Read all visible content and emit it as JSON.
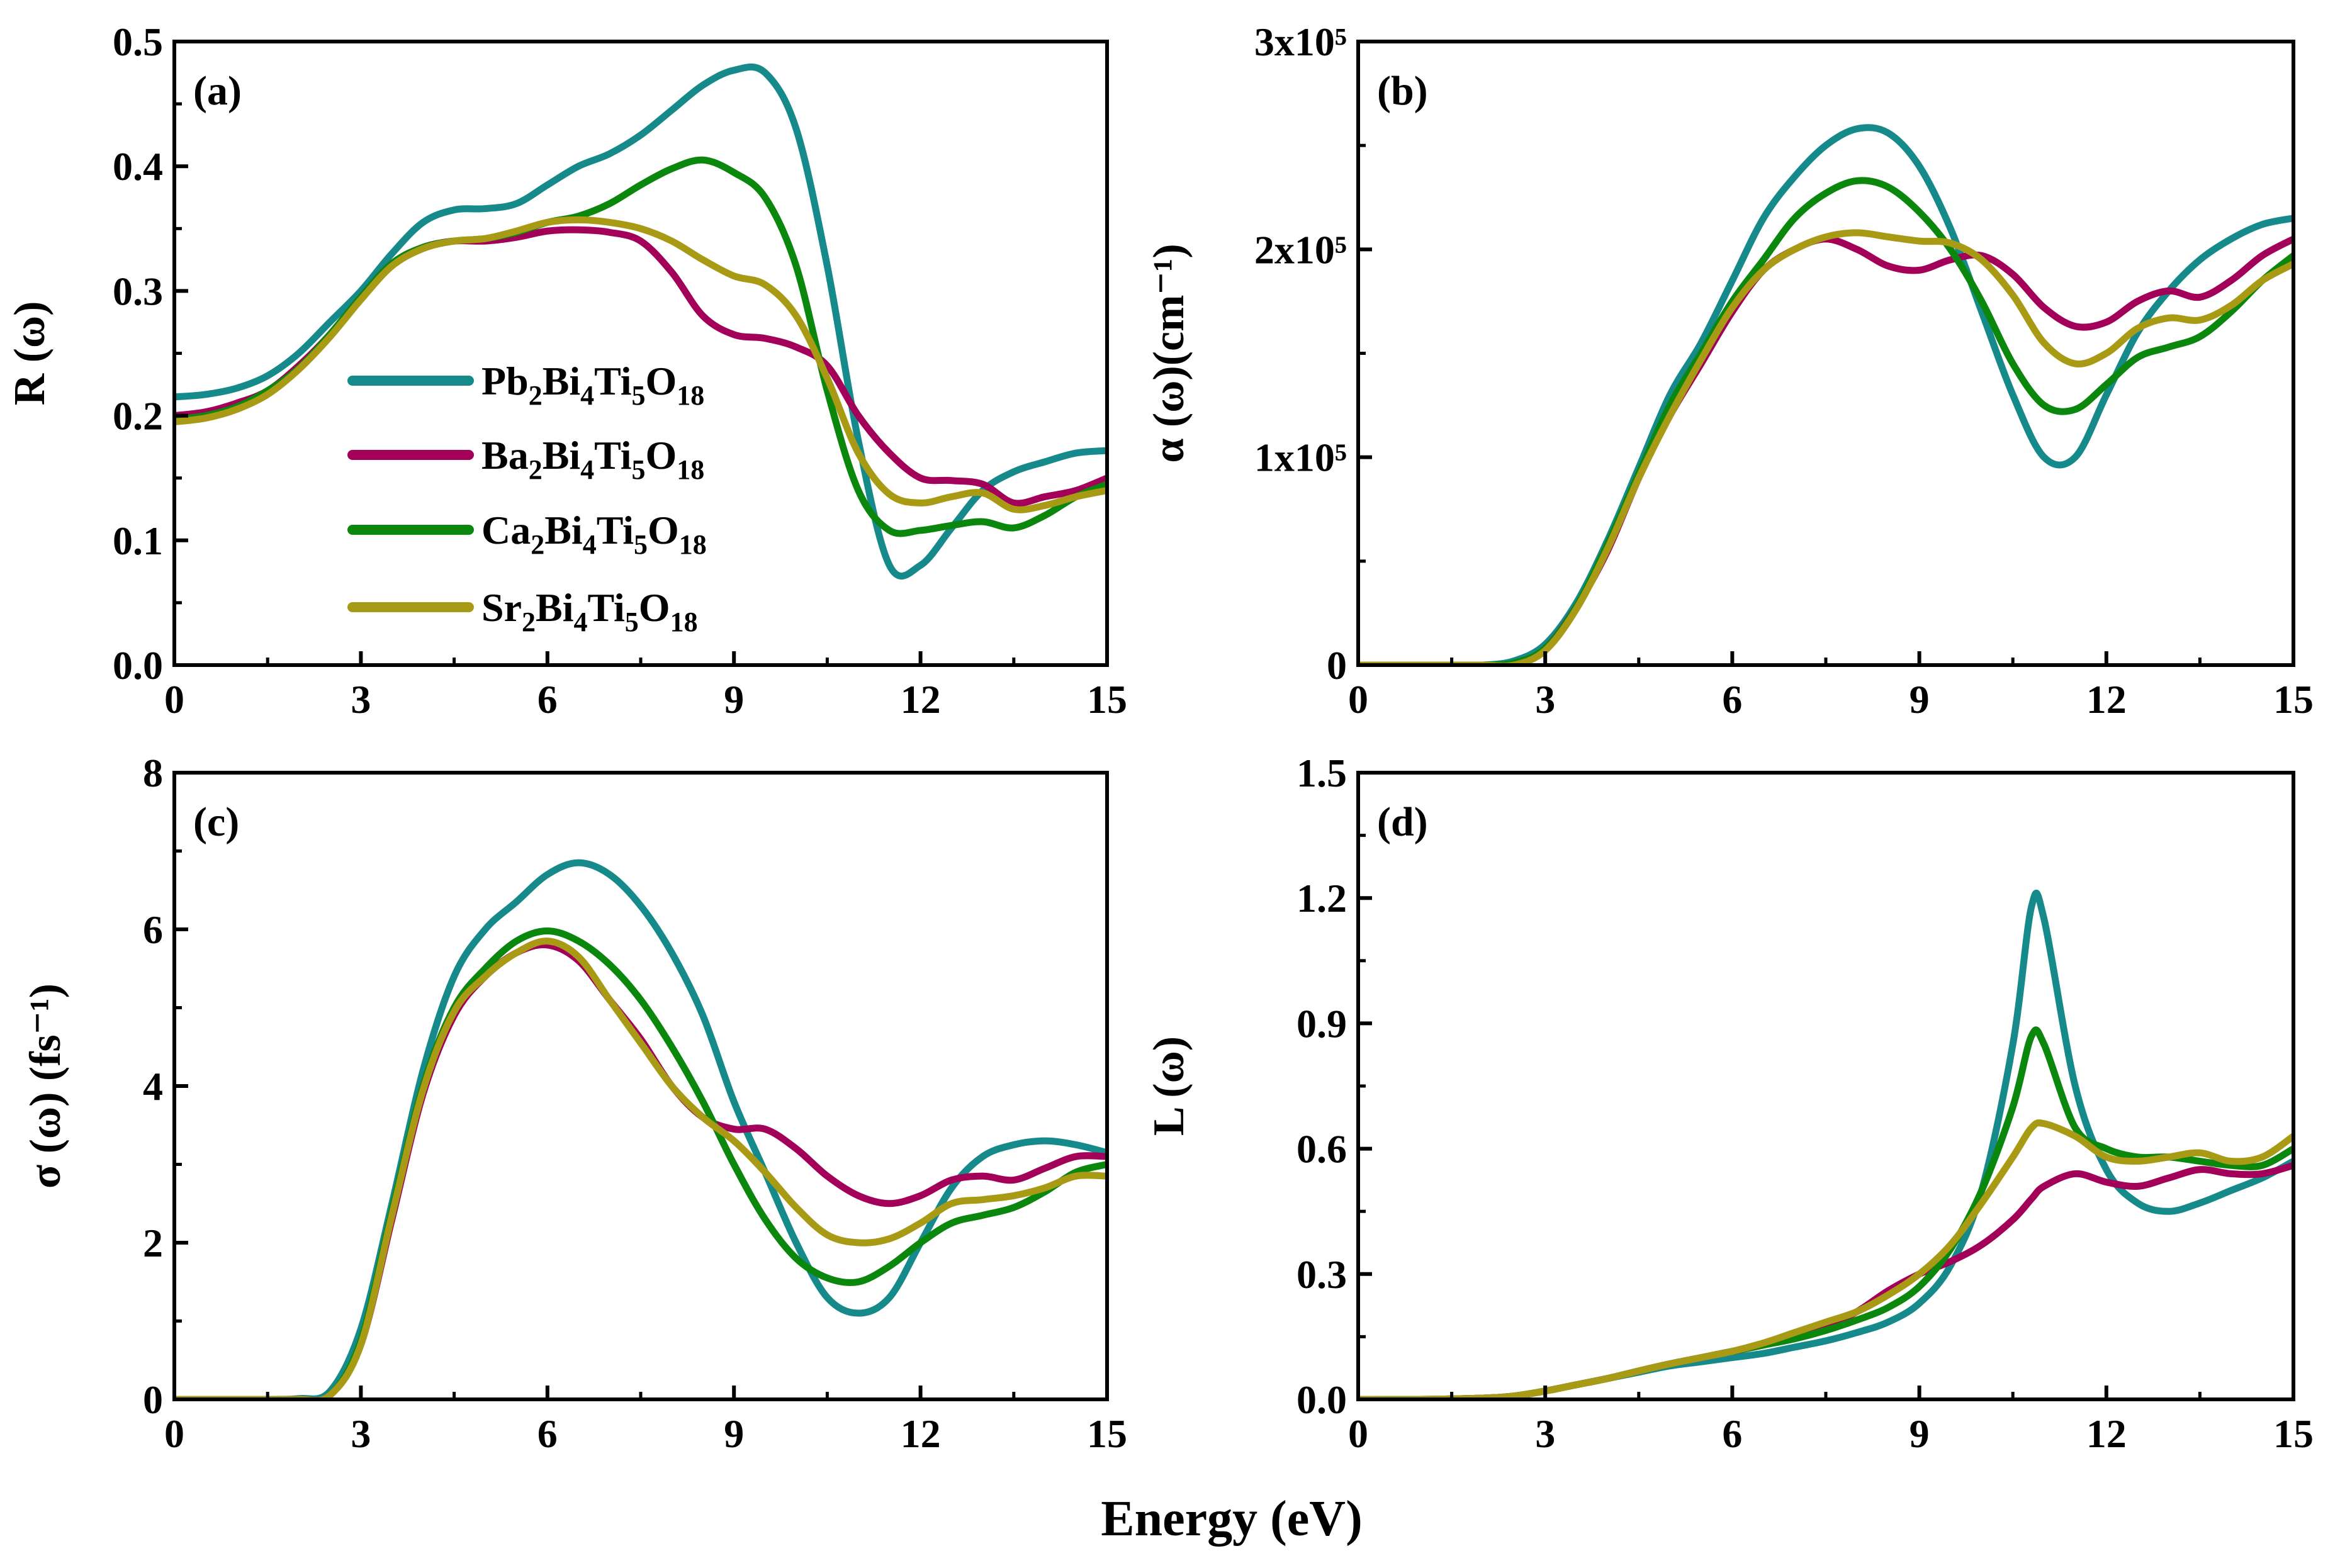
{
  "chart_data": [
    {
      "type": "line",
      "panel_label": "(a)",
      "ylabel": "R (ω)",
      "xlabel": "Energy (eV)",
      "xlim": [
        0,
        15
      ],
      "ylim": [
        0,
        0.5
      ],
      "xticks": [
        0,
        3,
        6,
        9,
        12,
        15
      ],
      "xtick_labels": [
        "0",
        "3",
        "6",
        "9",
        "12",
        "15"
      ],
      "yticks": [
        0,
        0.1,
        0.2,
        0.3,
        0.4,
        0.5
      ],
      "ytick_labels": [
        "0.0",
        "0.1",
        "0.2",
        "0.3",
        "0.4",
        "0.5"
      ],
      "legend": "center-left",
      "x": [
        0,
        0.5,
        1,
        1.5,
        2,
        2.5,
        3,
        3.5,
        4,
        4.5,
        5,
        5.5,
        6,
        6.5,
        7,
        7.5,
        8,
        8.5,
        9,
        9.5,
        10,
        10.5,
        11,
        11.5,
        12,
        12.5,
        13,
        13.5,
        14,
        14.5,
        15
      ],
      "series": [
        {
          "name": "Pb2Bi4Ti5O18",
          "values": [
            0.215,
            0.217,
            0.222,
            0.232,
            0.25,
            0.275,
            0.3,
            0.33,
            0.355,
            0.365,
            0.366,
            0.37,
            0.385,
            0.4,
            0.41,
            0.425,
            0.445,
            0.465,
            0.477,
            0.475,
            0.43,
            0.32,
            0.18,
            0.08,
            0.08,
            0.11,
            0.14,
            0.155,
            0.163,
            0.17,
            0.172
          ]
        },
        {
          "name": "Ba2Bi4Ti5O18",
          "values": [
            0.2,
            0.203,
            0.21,
            0.22,
            0.24,
            0.265,
            0.295,
            0.322,
            0.335,
            0.34,
            0.34,
            0.343,
            0.348,
            0.349,
            0.347,
            0.34,
            0.315,
            0.28,
            0.265,
            0.262,
            0.255,
            0.24,
            0.2,
            0.17,
            0.15,
            0.148,
            0.145,
            0.13,
            0.135,
            0.14,
            0.15
          ]
        },
        {
          "name": "Ca2Bi4Ti5O18",
          "values": [
            0.197,
            0.2,
            0.207,
            0.22,
            0.238,
            0.265,
            0.295,
            0.322,
            0.335,
            0.34,
            0.342,
            0.347,
            0.355,
            0.36,
            0.37,
            0.385,
            0.398,
            0.405,
            0.395,
            0.375,
            0.32,
            0.22,
            0.14,
            0.108,
            0.108,
            0.112,
            0.115,
            0.11,
            0.12,
            0.135,
            0.145
          ]
        },
        {
          "name": "Sr2Bi4Ti5O18",
          "values": [
            0.195,
            0.198,
            0.205,
            0.217,
            0.237,
            0.263,
            0.293,
            0.32,
            0.334,
            0.34,
            0.342,
            0.348,
            0.355,
            0.357,
            0.355,
            0.35,
            0.34,
            0.325,
            0.312,
            0.305,
            0.28,
            0.23,
            0.17,
            0.137,
            0.13,
            0.135,
            0.138,
            0.125,
            0.128,
            0.135,
            0.14
          ]
        }
      ]
    },
    {
      "type": "line",
      "panel_label": "(b)",
      "ylabel": "α (ω)(cm⁻¹)",
      "xlim": [
        0,
        15
      ],
      "ylim": [
        0,
        300000
      ],
      "xticks": [
        0,
        3,
        6,
        9,
        12,
        15
      ],
      "xtick_labels": [
        "0",
        "3",
        "6",
        "9",
        "12",
        "15"
      ],
      "yticks": [
        0,
        100000,
        200000,
        300000
      ],
      "ytick_labels": [
        "0",
        "1x10⁵",
        "2x10⁵",
        "3x10⁵"
      ],
      "x": [
        0,
        0.5,
        1,
        1.5,
        2,
        2.5,
        3,
        3.5,
        4,
        4.5,
        5,
        5.5,
        6,
        6.5,
        7,
        7.5,
        8,
        8.5,
        9,
        9.5,
        10,
        10.5,
        11,
        11.5,
        12,
        12.5,
        13,
        13.5,
        14,
        14.5,
        15
      ],
      "series": [
        {
          "name": "Pb2Bi4Ti5O18",
          "values": [
            0,
            0,
            0,
            0,
            0,
            2000,
            10000,
            30000,
            60000,
            95000,
            130000,
            155000,
            185000,
            215000,
            235000,
            250000,
            258000,
            256000,
            240000,
            210000,
            170000,
            130000,
            100000,
            100000,
            130000,
            160000,
            180000,
            195000,
            205000,
            212000,
            215000
          ]
        },
        {
          "name": "Ba2Bi4Ti5O18",
          "values": [
            0,
            0,
            0,
            0,
            0,
            0,
            8000,
            28000,
            55000,
            90000,
            120000,
            145000,
            170000,
            190000,
            200000,
            205000,
            200000,
            192000,
            190000,
            195000,
            197000,
            188000,
            172000,
            163000,
            165000,
            175000,
            180000,
            177000,
            185000,
            197000,
            205000
          ]
        },
        {
          "name": "Ca2Bi4Ti5O18",
          "values": [
            0,
            0,
            0,
            0,
            0,
            1000,
            8000,
            28000,
            58000,
            92000,
            125000,
            150000,
            175000,
            195000,
            215000,
            227000,
            233000,
            230000,
            218000,
            200000,
            175000,
            145000,
            125000,
            123000,
            135000,
            148000,
            153000,
            158000,
            170000,
            185000,
            197000
          ]
        },
        {
          "name": "Sr2Bi4Ti5O18",
          "values": [
            0,
            0,
            0,
            0,
            0,
            0,
            7000,
            27000,
            56000,
            90000,
            120000,
            147000,
            172000,
            190000,
            200000,
            206000,
            208000,
            206000,
            204000,
            203000,
            195000,
            178000,
            155000,
            145000,
            150000,
            162000,
            167000,
            166000,
            173000,
            185000,
            193000
          ]
        }
      ]
    },
    {
      "type": "line",
      "panel_label": "(c)",
      "ylabel": "σ (ω) (fs⁻¹)",
      "xlim": [
        0,
        15
      ],
      "ylim": [
        0,
        8
      ],
      "xticks": [
        0,
        3,
        6,
        9,
        12,
        15
      ],
      "xtick_labels": [
        "0",
        "3",
        "6",
        "9",
        "12",
        "15"
      ],
      "yticks": [
        0,
        2,
        4,
        6,
        8
      ],
      "ytick_labels": [
        "0",
        "2",
        "4",
        "6",
        "8"
      ],
      "x": [
        0,
        0.5,
        1,
        1.5,
        2,
        2.5,
        3,
        3.5,
        4,
        4.5,
        5,
        5.5,
        6,
        6.5,
        7,
        7.5,
        8,
        8.5,
        9,
        9.5,
        10,
        10.5,
        11,
        11.5,
        12,
        12.5,
        13,
        13.5,
        14,
        14.5,
        15
      ],
      "series": [
        {
          "name": "Pb2Bi4Ti5O18",
          "values": [
            0,
            0,
            0,
            0,
            0.01,
            0.1,
            0.9,
            2.5,
            4.2,
            5.4,
            6.0,
            6.35,
            6.7,
            6.85,
            6.7,
            6.3,
            5.7,
            4.9,
            3.8,
            2.9,
            2.0,
            1.3,
            1.1,
            1.3,
            2.0,
            2.7,
            3.1,
            3.25,
            3.3,
            3.25,
            3.15
          ]
        },
        {
          "name": "Ba2Bi4Ti5O18",
          "values": [
            0,
            0,
            0,
            0,
            0,
            0.05,
            0.7,
            2.3,
            3.9,
            4.9,
            5.4,
            5.7,
            5.8,
            5.6,
            5.1,
            4.6,
            4.0,
            3.6,
            3.45,
            3.45,
            3.2,
            2.85,
            2.6,
            2.5,
            2.6,
            2.8,
            2.85,
            2.8,
            2.95,
            3.1,
            3.1
          ]
        },
        {
          "name": "Ca2Bi4Ti5O18",
          "values": [
            0,
            0,
            0,
            0,
            0,
            0.05,
            0.75,
            2.4,
            4.0,
            5.0,
            5.5,
            5.85,
            5.98,
            5.85,
            5.55,
            5.1,
            4.5,
            3.8,
            3.0,
            2.3,
            1.8,
            1.55,
            1.5,
            1.7,
            2.0,
            2.25,
            2.35,
            2.45,
            2.65,
            2.9,
            3.0
          ]
        },
        {
          "name": "Sr2Bi4Ti5O18",
          "values": [
            0,
            0,
            0,
            0,
            0,
            0.05,
            0.7,
            2.35,
            3.95,
            4.95,
            5.4,
            5.7,
            5.85,
            5.65,
            5.1,
            4.55,
            4.0,
            3.6,
            3.3,
            2.9,
            2.45,
            2.1,
            2.0,
            2.05,
            2.25,
            2.5,
            2.55,
            2.6,
            2.7,
            2.85,
            2.85
          ]
        }
      ]
    },
    {
      "type": "line",
      "panel_label": "(d)",
      "ylabel": "L (ω)",
      "xlim": [
        0,
        15
      ],
      "ylim": [
        0,
        1.5
      ],
      "xticks": [
        0,
        3,
        6,
        9,
        12,
        15
      ],
      "xtick_labels": [
        "0",
        "3",
        "6",
        "9",
        "12",
        "15"
      ],
      "yticks": [
        0,
        0.3,
        0.6,
        0.9,
        1.2,
        1.5
      ],
      "ytick_labels": [
        "0.0",
        "0.3",
        "0.6",
        "0.9",
        "1.2",
        "1.5"
      ],
      "x": [
        0,
        1,
        2,
        2.5,
        3,
        3.5,
        4,
        4.5,
        5,
        5.5,
        6,
        6.5,
        7,
        7.5,
        8,
        8.5,
        9,
        9.5,
        10,
        10.5,
        10.8,
        11,
        11.5,
        12,
        12.5,
        13,
        13.5,
        14,
        14.5,
        15
      ],
      "series": [
        {
          "name": "Pb2Bi4Ti5O18",
          "values": [
            0,
            0,
            0.003,
            0.008,
            0.02,
            0.035,
            0.05,
            0.065,
            0.08,
            0.09,
            0.1,
            0.11,
            0.125,
            0.14,
            0.16,
            0.185,
            0.23,
            0.32,
            0.5,
            0.85,
            1.18,
            1.15,
            0.75,
            0.55,
            0.47,
            0.45,
            0.47,
            0.5,
            0.53,
            0.57
          ]
        },
        {
          "name": "Ba2Bi4Ti5O18",
          "values": [
            0,
            0,
            0.003,
            0.008,
            0.02,
            0.035,
            0.05,
            0.068,
            0.085,
            0.1,
            0.115,
            0.13,
            0.15,
            0.175,
            0.21,
            0.26,
            0.3,
            0.33,
            0.37,
            0.43,
            0.48,
            0.51,
            0.54,
            0.52,
            0.51,
            0.53,
            0.55,
            0.54,
            0.54,
            0.56
          ]
        },
        {
          "name": "Ca2Bi4Ti5O18",
          "values": [
            0,
            0,
            0.003,
            0.008,
            0.02,
            0.035,
            0.05,
            0.068,
            0.085,
            0.1,
            0.115,
            0.13,
            0.145,
            0.165,
            0.19,
            0.22,
            0.27,
            0.36,
            0.5,
            0.7,
            0.87,
            0.85,
            0.65,
            0.6,
            0.58,
            0.58,
            0.57,
            0.56,
            0.56,
            0.6
          ]
        },
        {
          "name": "Sr2Bi4Ti5O18",
          "values": [
            0,
            0,
            0.003,
            0.008,
            0.02,
            0.035,
            0.05,
            0.068,
            0.085,
            0.1,
            0.115,
            0.135,
            0.16,
            0.185,
            0.21,
            0.25,
            0.3,
            0.37,
            0.47,
            0.58,
            0.65,
            0.66,
            0.63,
            0.58,
            0.57,
            0.58,
            0.59,
            0.57,
            0.58,
            0.63
          ]
        }
      ]
    }
  ],
  "shared_xlabel": "Energy (eV)",
  "legend": [
    "Pb2Bi4Ti5O18",
    "Ba2Bi4Ti5O18",
    "Ca2Bi4Ti5O18",
    "Sr2Bi4Ti5O18"
  ],
  "colors": {
    "Pb2Bi4Ti5O18": "#168a8a",
    "Ba2Bi4Ti5O18": "#a3005a",
    "Ca2Bi4Ti5O18": "#0b870e",
    "Sr2Bi4Ti5O18": "#a89a14"
  }
}
